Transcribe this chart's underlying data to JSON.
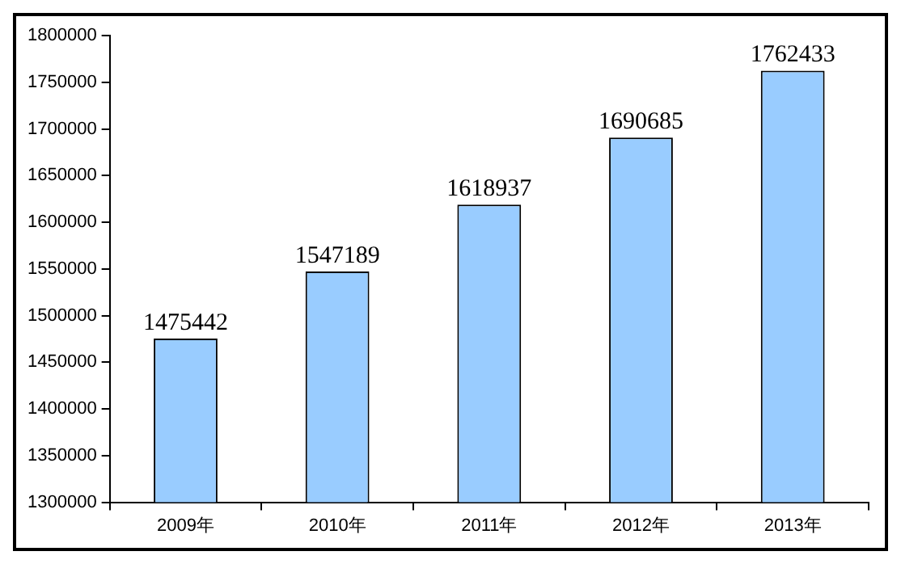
{
  "chart_data": {
    "type": "bar",
    "categories": [
      "2009年",
      "2010年",
      "2011年",
      "2012年",
      "2013年"
    ],
    "values": [
      1475442,
      1547189,
      1618937,
      1690685,
      1762433
    ],
    "color": "#99ccff",
    "ylim": [
      1300000,
      1800000
    ],
    "yticks": [
      1300000,
      1350000,
      1400000,
      1450000,
      1500000,
      1550000,
      1600000,
      1650000,
      1700000,
      1750000,
      1800000
    ],
    "grid": false,
    "legend": false,
    "data_labels": true
  }
}
